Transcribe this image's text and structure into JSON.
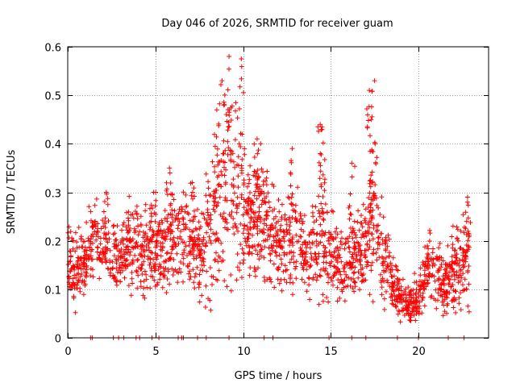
{
  "chart_data": {
    "type": "scatter",
    "title": "Day 046 of 2026, SRMTID for receiver guam",
    "xlabel": "GPS time / hours",
    "ylabel": "SRMTID / TECUs",
    "xlim": [
      0,
      24
    ],
    "ylim": [
      0,
      0.6
    ],
    "grid": true,
    "marker": "+",
    "xticks": [
      0,
      5,
      10,
      15,
      20
    ],
    "yticks": [
      0,
      0.1,
      0.2,
      0.3,
      0.4,
      0.5,
      0.6
    ],
    "colors": {
      "series": "#ff0000",
      "grid": "#a0a0a0",
      "axis": "#000000"
    },
    "envelope": {
      "x": [
        0.0,
        0.5,
        1.0,
        1.5,
        2.0,
        2.5,
        3.0,
        3.5,
        4.0,
        4.5,
        5.0,
        5.5,
        6.0,
        6.5,
        7.0,
        7.5,
        8.0,
        8.5,
        9.0,
        9.5,
        10.0,
        10.5,
        11.0,
        11.5,
        12.0,
        12.5,
        13.0,
        13.5,
        14.0,
        14.5,
        15.0,
        15.5,
        16.0,
        16.5,
        17.0,
        17.5,
        18.0,
        18.5,
        19.0,
        19.5,
        20.0,
        20.5,
        21.0,
        21.5,
        22.0,
        22.5,
        22.9
      ],
      "mean": [
        0.15,
        0.14,
        0.15,
        0.21,
        0.19,
        0.17,
        0.16,
        0.19,
        0.17,
        0.18,
        0.18,
        0.19,
        0.2,
        0.21,
        0.19,
        0.18,
        0.22,
        0.27,
        0.33,
        0.32,
        0.26,
        0.24,
        0.25,
        0.22,
        0.2,
        0.19,
        0.2,
        0.18,
        0.19,
        0.2,
        0.17,
        0.16,
        0.15,
        0.17,
        0.19,
        0.25,
        0.18,
        0.12,
        0.08,
        0.07,
        0.08,
        0.15,
        0.15,
        0.1,
        0.14,
        0.15,
        0.16
      ],
      "spread": [
        0.05,
        0.05,
        0.05,
        0.06,
        0.05,
        0.05,
        0.05,
        0.06,
        0.06,
        0.06,
        0.06,
        0.06,
        0.07,
        0.07,
        0.06,
        0.06,
        0.08,
        0.12,
        0.15,
        0.15,
        0.08,
        0.07,
        0.08,
        0.07,
        0.06,
        0.06,
        0.07,
        0.06,
        0.07,
        0.08,
        0.06,
        0.05,
        0.05,
        0.06,
        0.07,
        0.12,
        0.07,
        0.04,
        0.03,
        0.03,
        0.03,
        0.05,
        0.05,
        0.04,
        0.06,
        0.06,
        0.07
      ],
      "peaks": [
        {
          "x": 9.2,
          "y": 0.58
        },
        {
          "x": 9.9,
          "y": 0.575
        },
        {
          "x": 8.8,
          "y": 0.53
        },
        {
          "x": 8.5,
          "y": 0.47
        },
        {
          "x": 10.8,
          "y": 0.41
        },
        {
          "x": 11.0,
          "y": 0.4
        },
        {
          "x": 12.8,
          "y": 0.39
        },
        {
          "x": 14.4,
          "y": 0.44
        },
        {
          "x": 14.5,
          "y": 0.43
        },
        {
          "x": 17.2,
          "y": 0.51
        },
        {
          "x": 17.5,
          "y": 0.53
        },
        {
          "x": 17.3,
          "y": 0.45
        },
        {
          "x": 16.2,
          "y": 0.36
        },
        {
          "x": 5.8,
          "y": 0.35
        },
        {
          "x": 4.9,
          "y": 0.3
        },
        {
          "x": 2.2,
          "y": 0.3
        },
        {
          "x": 22.8,
          "y": 0.29
        },
        {
          "x": 7.1,
          "y": 0.32
        }
      ],
      "zeros": [
        1.3,
        1.4,
        2.6,
        2.9,
        3.2,
        3.9,
        4.1,
        4.8,
        5.2,
        6.3,
        6.5,
        6.6,
        7.4,
        7.9,
        9.2,
        11.2,
        11.7,
        14.9,
        16.2,
        17.0,
        18.8,
        20.0,
        21.7,
        22.6
      ]
    }
  }
}
